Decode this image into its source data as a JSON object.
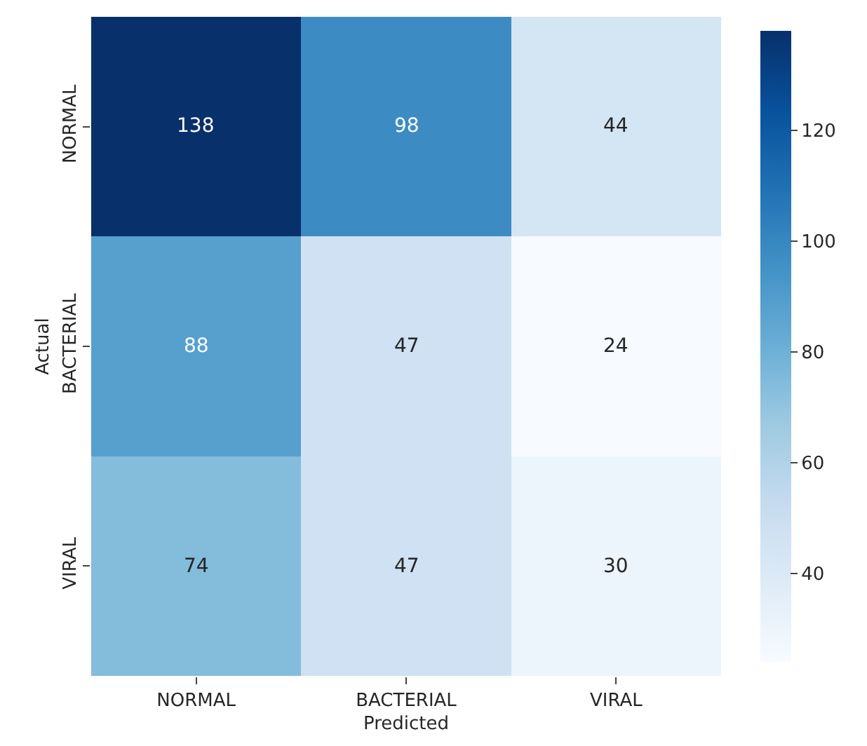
{
  "chart_data": {
    "type": "heatmap",
    "xlabel": "Predicted",
    "ylabel": "Actual",
    "categories": [
      "NORMAL",
      "BACTERIAL",
      "VIRAL"
    ],
    "y_categories": [
      "NORMAL",
      "BACTERIAL",
      "VIRAL"
    ],
    "cells": [
      [
        138,
        98,
        44
      ],
      [
        88,
        47,
        24
      ],
      [
        74,
        47,
        30
      ]
    ],
    "clim": [
      24,
      138
    ],
    "cticks": [
      40,
      60,
      80,
      100,
      120
    ],
    "data_labels": true
  }
}
